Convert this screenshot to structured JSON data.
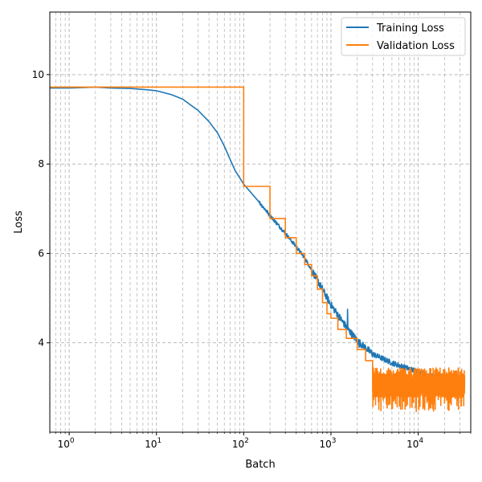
{
  "chart_data": {
    "type": "line",
    "title": "",
    "xlabel": "Batch",
    "ylabel": "Loss",
    "xscale": "log",
    "xlim": [
      0.6,
      40000
    ],
    "ylim": [
      2.0,
      11.4
    ],
    "grid": "both (major and minor), dashed",
    "legend_position": "top-right",
    "x_ticks": [
      {
        "value": 1,
        "label": "0"
      },
      {
        "value": 10,
        "label": "1"
      },
      {
        "value": 100,
        "label": "2"
      },
      {
        "value": 1000,
        "label": "3"
      },
      {
        "value": 10000,
        "label": "4"
      }
    ],
    "y_ticks": [
      4,
      6,
      8,
      10
    ],
    "series": [
      {
        "name": "Training Loss",
        "color": "#1f77b4",
        "points": [
          [
            0.6,
            9.7
          ],
          [
            1,
            9.7
          ],
          [
            2,
            9.72
          ],
          [
            3,
            9.7
          ],
          [
            5,
            9.69
          ],
          [
            8,
            9.66
          ],
          [
            10,
            9.64
          ],
          [
            15,
            9.55
          ],
          [
            20,
            9.45
          ],
          [
            30,
            9.2
          ],
          [
            40,
            8.95
          ],
          [
            50,
            8.7
          ],
          [
            60,
            8.4
          ],
          [
            70,
            8.1
          ],
          [
            80,
            7.85
          ],
          [
            100,
            7.55
          ],
          [
            150,
            7.15
          ],
          [
            200,
            6.85
          ],
          [
            300,
            6.45
          ],
          [
            400,
            6.15
          ],
          [
            500,
            5.9
          ],
          [
            700,
            5.4
          ],
          [
            1000,
            4.85
          ],
          [
            1500,
            4.35
          ],
          [
            2000,
            4.05
          ],
          [
            3000,
            3.75
          ],
          [
            5000,
            3.55
          ],
          [
            7000,
            3.45
          ],
          [
            10000,
            3.35
          ],
          [
            15000,
            3.25
          ],
          [
            20000,
            3.2
          ],
          [
            30000,
            3.15
          ],
          [
            34000,
            3.1
          ]
        ],
        "spikes": [
          [
            1550,
            4.75
          ],
          [
            2100,
            3.9
          ],
          [
            3200,
            3.7
          ],
          [
            5000,
            3.55
          ]
        ]
      },
      {
        "name": "Validation Loss",
        "color": "#ff7f0e",
        "steps": [
          [
            0.6,
            9.72
          ],
          [
            100,
            9.72
          ],
          [
            100,
            7.5
          ],
          [
            200,
            7.5
          ],
          [
            200,
            6.78
          ],
          [
            300,
            6.78
          ],
          [
            300,
            6.35
          ],
          [
            400,
            6.35
          ],
          [
            400,
            6.0
          ],
          [
            500,
            6.0
          ],
          [
            500,
            5.75
          ],
          [
            600,
            5.75
          ],
          [
            600,
            5.5
          ],
          [
            700,
            5.5
          ],
          [
            700,
            5.2
          ],
          [
            800,
            5.2
          ],
          [
            800,
            4.9
          ],
          [
            900,
            4.9
          ],
          [
            900,
            4.65
          ],
          [
            1000,
            4.65
          ],
          [
            1000,
            4.55
          ],
          [
            1200,
            4.55
          ],
          [
            1200,
            4.3
          ],
          [
            1500,
            4.3
          ],
          [
            1500,
            4.1
          ],
          [
            2000,
            4.1
          ],
          [
            2000,
            3.85
          ],
          [
            2500,
            3.85
          ],
          [
            2500,
            3.6
          ],
          [
            3000,
            3.6
          ]
        ],
        "noisy_range": {
          "x_start": 3000,
          "x_end": 34000,
          "mean": 3.05,
          "min": 2.45,
          "max": 3.45
        }
      }
    ]
  }
}
